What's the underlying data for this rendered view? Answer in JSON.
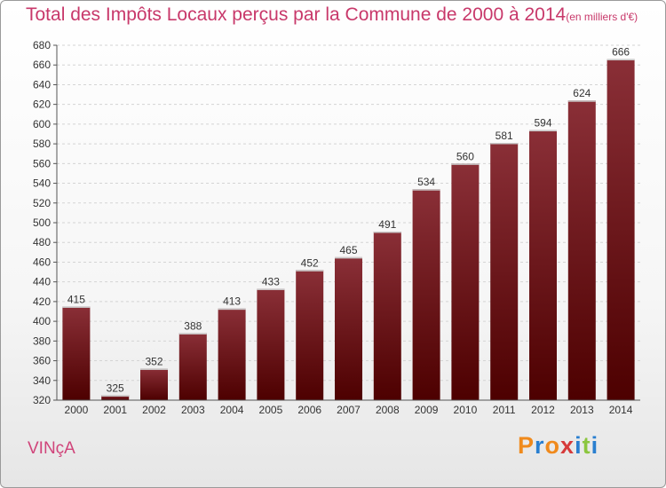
{
  "title": "Total des Impôts Locaux perçus par la Commune de 2000 à 2014",
  "unit_note": "(en milliers d'€)",
  "commune": "VINçA",
  "logo": {
    "letters": [
      "P",
      "r",
      "o",
      "x",
      "i",
      "t",
      "i"
    ],
    "colors": [
      "#f08a1c",
      "#2a7fd0",
      "#f08a1c",
      "#d63a3a",
      "#2a7fd0",
      "#8cc63f",
      "#2a7fd0"
    ]
  },
  "colors": {
    "bar_top": "#8a2f37",
    "bar_bottom": "#4d0000",
    "title": "#c8386a"
  },
  "chart_data": {
    "type": "bar",
    "categories": [
      "2000",
      "2001",
      "2002",
      "2003",
      "2004",
      "2005",
      "2006",
      "2007",
      "2008",
      "2009",
      "2010",
      "2011",
      "2012",
      "2013",
      "2014"
    ],
    "values": [
      415,
      325,
      352,
      388,
      413,
      433,
      452,
      465,
      491,
      534,
      560,
      581,
      594,
      624,
      666
    ],
    "title": "Total des Impôts Locaux perçus par la Commune de 2000 à 2014",
    "xlabel": "",
    "ylabel": "",
    "ylim": [
      320,
      680
    ],
    "yticks": [
      320,
      340,
      360,
      380,
      400,
      420,
      440,
      460,
      480,
      500,
      520,
      540,
      560,
      580,
      600,
      620,
      640,
      660,
      680
    ],
    "grid": true,
    "show_value_labels": true
  }
}
